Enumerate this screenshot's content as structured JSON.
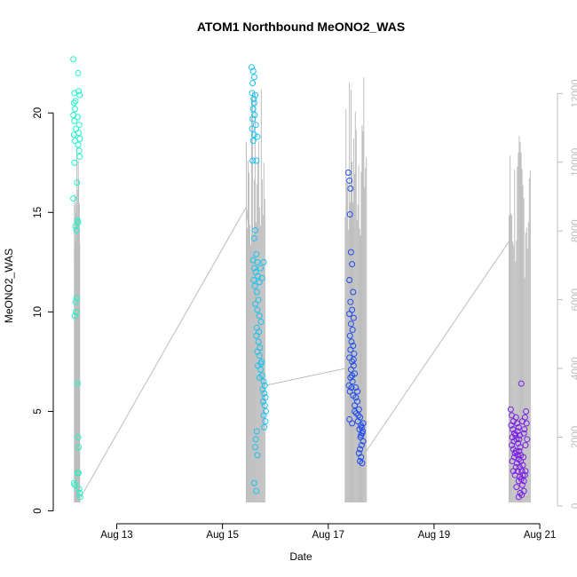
{
  "chart_data": {
    "type": "scatter",
    "title": "ATOM1 Northbound MeONO2_WAS",
    "xlabel": "Date",
    "ylabel": "MeONO2_WAS",
    "x_ticks": [
      "Aug 13",
      "Aug 15",
      "Aug 17",
      "Aug 19",
      "Aug 21"
    ],
    "x_tick_dates": [
      13,
      15,
      17,
      19,
      21
    ],
    "xlim": [
      11.8,
      21.2
    ],
    "ylim": [
      -0.2,
      23.0
    ],
    "y_ticks": [
      0,
      5,
      10,
      15,
      20
    ],
    "y2_ticks": [
      0,
      2000,
      4000,
      6000,
      8000,
      10000,
      12000
    ],
    "y2lim": [
      -260,
      13170
    ],
    "colors": {
      "background": "#ffffff",
      "secondary_series": "#bdbdbd",
      "axis": "#000000",
      "right_axis": "#bdbdbd"
    },
    "series": [
      {
        "color": "#1ff5c8",
        "points": [
          [
            12.18,
            22.7
          ],
          [
            12.2,
            21.0
          ],
          [
            12.22,
            20.6
          ],
          [
            12.19,
            20.5
          ],
          [
            12.21,
            20.2
          ],
          [
            12.18,
            19.9
          ],
          [
            12.2,
            19.6
          ],
          [
            12.23,
            19.2
          ],
          [
            12.19,
            18.9
          ],
          [
            12.21,
            18.6
          ],
          [
            12.28,
            21.1
          ],
          [
            12.27,
            22.0
          ],
          [
            12.3,
            20.9
          ],
          [
            12.26,
            19.8
          ],
          [
            12.29,
            19.4
          ],
          [
            12.28,
            19.0
          ],
          [
            12.3,
            18.7
          ],
          [
            12.27,
            18.4
          ],
          [
            12.29,
            18.1
          ],
          [
            12.3,
            17.8
          ],
          [
            12.2,
            17.5
          ],
          [
            12.25,
            16.5
          ],
          [
            12.18,
            15.7
          ],
          [
            12.26,
            14.6
          ],
          [
            12.22,
            14.3
          ],
          [
            12.24,
            14.1
          ],
          [
            12.27,
            14.5
          ],
          [
            12.24,
            10.7
          ],
          [
            12.22,
            10.5
          ],
          [
            12.23,
            10.0
          ],
          [
            12.21,
            9.8
          ],
          [
            12.26,
            6.4
          ],
          [
            12.27,
            3.7
          ],
          [
            12.28,
            3.2
          ],
          [
            12.26,
            1.9
          ],
          [
            12.28,
            1.9
          ],
          [
            12.19,
            1.4
          ],
          [
            12.21,
            1.3
          ],
          [
            12.29,
            1.1
          ],
          [
            12.3,
            0.9
          ],
          [
            12.31,
            0.7
          ]
        ]
      },
      {
        "color": "#19c3f0",
        "points": [
          [
            15.55,
            22.3
          ],
          [
            15.58,
            22.1
          ],
          [
            15.6,
            21.8
          ],
          [
            15.57,
            21.5
          ],
          [
            15.56,
            21.0
          ],
          [
            15.62,
            20.9
          ],
          [
            15.59,
            20.7
          ],
          [
            15.6,
            20.5
          ],
          [
            15.58,
            20.2
          ],
          [
            15.61,
            19.9
          ],
          [
            15.57,
            19.7
          ],
          [
            15.63,
            19.4
          ],
          [
            15.56,
            19.2
          ],
          [
            15.6,
            18.9
          ],
          [
            15.58,
            18.6
          ],
          [
            15.57,
            17.6
          ],
          [
            15.64,
            17.6
          ],
          [
            15.66,
            18.8
          ],
          [
            15.62,
            14.1
          ],
          [
            15.6,
            13.7
          ],
          [
            15.64,
            12.9
          ],
          [
            15.58,
            12.6
          ],
          [
            15.66,
            12.5
          ],
          [
            15.6,
            12.2
          ],
          [
            15.63,
            12.0
          ],
          [
            15.67,
            11.8
          ],
          [
            15.59,
            11.6
          ],
          [
            15.61,
            11.3
          ],
          [
            15.65,
            11.0
          ],
          [
            15.7,
            11.5
          ],
          [
            15.75,
            11.7
          ],
          [
            15.78,
            12.5
          ],
          [
            15.72,
            12.2
          ],
          [
            15.68,
            10.6
          ],
          [
            15.62,
            10.4
          ],
          [
            15.66,
            10.1
          ],
          [
            15.7,
            9.8
          ],
          [
            15.73,
            9.5
          ],
          [
            15.65,
            9.2
          ],
          [
            15.69,
            9.0
          ],
          [
            15.64,
            8.8
          ],
          [
            15.68,
            8.5
          ],
          [
            15.71,
            8.2
          ],
          [
            15.66,
            8.0
          ],
          [
            15.7,
            7.8
          ],
          [
            15.74,
            7.5
          ],
          [
            15.67,
            7.3
          ],
          [
            15.72,
            7.1
          ],
          [
            15.75,
            6.8
          ],
          [
            15.78,
            6.5
          ],
          [
            15.8,
            6.3
          ],
          [
            15.76,
            6.1
          ],
          [
            15.79,
            5.9
          ],
          [
            15.81,
            5.7
          ],
          [
            15.77,
            5.5
          ],
          [
            15.8,
            5.3
          ],
          [
            15.82,
            5.0
          ],
          [
            15.78,
            4.8
          ],
          [
            15.81,
            4.5
          ],
          [
            15.79,
            4.2
          ],
          [
            15.65,
            4.0
          ],
          [
            15.63,
            3.6
          ],
          [
            15.62,
            3.2
          ],
          [
            15.66,
            2.8
          ],
          [
            15.6,
            1.4
          ],
          [
            15.64,
            1.0
          ],
          [
            15.7,
            6.7
          ],
          [
            15.73,
            7.4
          ]
        ]
      },
      {
        "color": "#1f4cf0",
        "points": [
          [
            17.38,
            17.0
          ],
          [
            17.4,
            16.6
          ],
          [
            17.42,
            16.2
          ],
          [
            17.41,
            14.9
          ],
          [
            17.43,
            13.0
          ],
          [
            17.45,
            12.4
          ],
          [
            17.4,
            11.6
          ],
          [
            17.47,
            11.0
          ],
          [
            17.42,
            10.5
          ],
          [
            17.45,
            10.1
          ],
          [
            17.4,
            9.9
          ],
          [
            17.48,
            9.7
          ],
          [
            17.43,
            9.4
          ],
          [
            17.46,
            9.1
          ],
          [
            17.41,
            8.8
          ],
          [
            17.44,
            8.5
          ],
          [
            17.47,
            8.3
          ],
          [
            17.42,
            8.1
          ],
          [
            17.49,
            7.9
          ],
          [
            17.4,
            7.7
          ],
          [
            17.45,
            7.5
          ],
          [
            17.48,
            7.3
          ],
          [
            17.43,
            7.1
          ],
          [
            17.5,
            6.9
          ],
          [
            17.42,
            6.7
          ],
          [
            17.46,
            6.5
          ],
          [
            17.39,
            6.3
          ],
          [
            17.44,
            6.2
          ],
          [
            17.41,
            6.0
          ],
          [
            17.47,
            5.8
          ],
          [
            17.52,
            5.7
          ],
          [
            17.55,
            5.5
          ],
          [
            17.5,
            5.3
          ],
          [
            17.58,
            5.1
          ],
          [
            17.53,
            4.9
          ],
          [
            17.6,
            4.7
          ],
          [
            17.56,
            4.5
          ],
          [
            17.62,
            4.3
          ],
          [
            17.59,
            4.1
          ],
          [
            17.64,
            3.9
          ],
          [
            17.61,
            3.7
          ],
          [
            17.66,
            3.5
          ],
          [
            17.63,
            3.3
          ],
          [
            17.6,
            3.1
          ],
          [
            17.58,
            2.9
          ],
          [
            17.62,
            2.7
          ],
          [
            17.6,
            2.5
          ],
          [
            17.64,
            2.4
          ],
          [
            17.4,
            4.6
          ],
          [
            17.45,
            4.4
          ],
          [
            17.52,
            6.2
          ],
          [
            17.55,
            6.0
          ],
          [
            17.5,
            5.0
          ],
          [
            17.57,
            4.8
          ],
          [
            17.63,
            4.2
          ],
          [
            17.65,
            4.0
          ],
          [
            17.62,
            3.8
          ],
          [
            17.66,
            4.4
          ],
          [
            17.45,
            6.8
          ],
          [
            17.48,
            7.6
          ]
        ]
      },
      {
        "color": "#7a1fe8",
        "points": [
          [
            20.45,
            5.1
          ],
          [
            20.47,
            4.8
          ],
          [
            20.5,
            4.5
          ],
          [
            20.46,
            4.3
          ],
          [
            20.49,
            4.1
          ],
          [
            20.52,
            3.9
          ],
          [
            20.48,
            3.7
          ],
          [
            20.51,
            3.5
          ],
          [
            20.47,
            3.3
          ],
          [
            20.5,
            3.1
          ],
          [
            20.53,
            2.9
          ],
          [
            20.55,
            4.7
          ],
          [
            20.57,
            4.4
          ],
          [
            20.6,
            4.2
          ],
          [
            20.58,
            4.0
          ],
          [
            20.62,
            3.8
          ],
          [
            20.56,
            3.6
          ],
          [
            20.59,
            3.4
          ],
          [
            20.63,
            3.2
          ],
          [
            20.61,
            3.0
          ],
          [
            20.64,
            2.8
          ],
          [
            20.6,
            2.6
          ],
          [
            20.57,
            2.4
          ],
          [
            20.62,
            2.2
          ],
          [
            20.66,
            2.0
          ],
          [
            20.68,
            1.8
          ],
          [
            20.65,
            1.6
          ],
          [
            20.7,
            1.5
          ],
          [
            20.67,
            1.3
          ],
          [
            20.72,
            1.8
          ],
          [
            20.55,
            2.2
          ],
          [
            20.58,
            2.0
          ],
          [
            20.53,
            1.8
          ],
          [
            20.6,
            1.5
          ],
          [
            20.56,
            1.2
          ],
          [
            20.63,
            0.9
          ],
          [
            20.6,
            0.7
          ],
          [
            20.66,
            0.8
          ],
          [
            20.7,
            1.0
          ],
          [
            20.73,
            2.0
          ],
          [
            20.75,
            4.4
          ],
          [
            20.72,
            4.7
          ],
          [
            20.74,
            5.0
          ],
          [
            20.71,
            4.1
          ],
          [
            20.76,
            3.6
          ],
          [
            20.73,
            3.3
          ],
          [
            20.69,
            2.7
          ],
          [
            20.65,
            6.4
          ],
          [
            20.5,
            2.0
          ],
          [
            20.48,
            2.5
          ],
          [
            20.52,
            2.7
          ],
          [
            20.55,
            3.0
          ],
          [
            20.61,
            3.6
          ],
          [
            20.64,
            2.5
          ],
          [
            20.68,
            2.3
          ],
          [
            20.7,
            3.9
          ],
          [
            20.62,
            1.7
          ],
          [
            20.58,
            2.8
          ],
          [
            20.54,
            3.8
          ],
          [
            20.67,
            4.5
          ]
        ]
      }
    ]
  }
}
